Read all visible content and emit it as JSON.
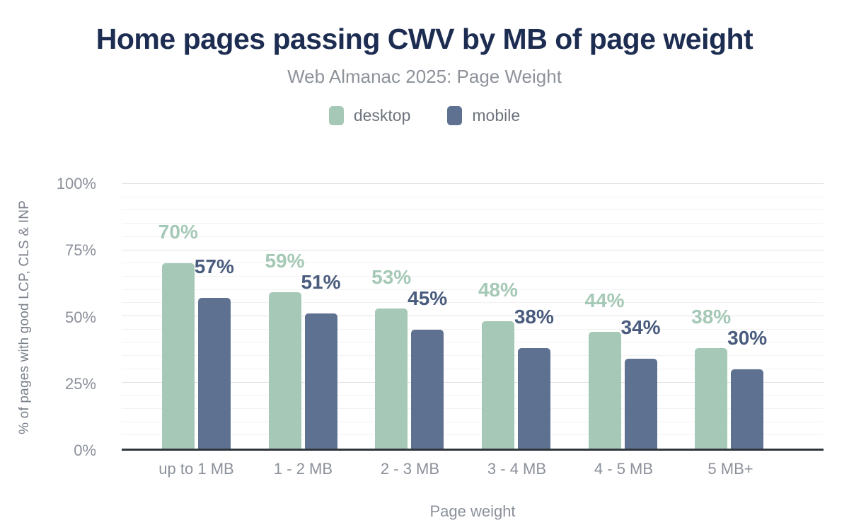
{
  "header": {
    "title": "Home pages passing CWV by MB of page weight",
    "subtitle": "Web Almanac 2025: Page Weight"
  },
  "chart_data": {
    "type": "bar",
    "title": "Home pages passing CWV by MB of page weight",
    "subtitle": "Web Almanac 2025: Page Weight",
    "categories": [
      "up to 1 MB",
      "1 - 2 MB",
      "2 - 3 MB",
      "3 - 4 MB",
      "4 - 5 MB",
      "5 MB+"
    ],
    "series": [
      {
        "name": "desktop",
        "color": "#a5c9b6",
        "label_color": "#a5c9b6",
        "values": [
          70,
          59,
          53,
          48,
          44,
          38
        ]
      },
      {
        "name": "mobile",
        "color": "#5f7190",
        "label_color": "#4a5c7e",
        "values": [
          57,
          51,
          45,
          38,
          34,
          30
        ]
      }
    ],
    "value_suffix": "%",
    "xlabel": "Page weight",
    "ylabel": "% of pages with good LCP, CLS & INP",
    "ylim": [
      0,
      100
    ],
    "yticks": [
      0,
      25,
      50,
      75,
      100
    ],
    "ytick_suffix": "%",
    "minor_grid_step": 5,
    "grid": true,
    "legend_position": "top",
    "legend": [
      "desktop",
      "mobile"
    ]
  },
  "colors": {
    "background": "#ffffff",
    "title_text": "#1d2d52",
    "subtitle_text": "#8e939b",
    "axis_text": "#8b909a",
    "axis_line": "#30363c",
    "legend_text": "#6e747d",
    "grid_minor": "#f2f2f2",
    "grid_major": "#e2e2e2",
    "desktop": "#a5c9b6",
    "mobile": "#5f7190"
  }
}
